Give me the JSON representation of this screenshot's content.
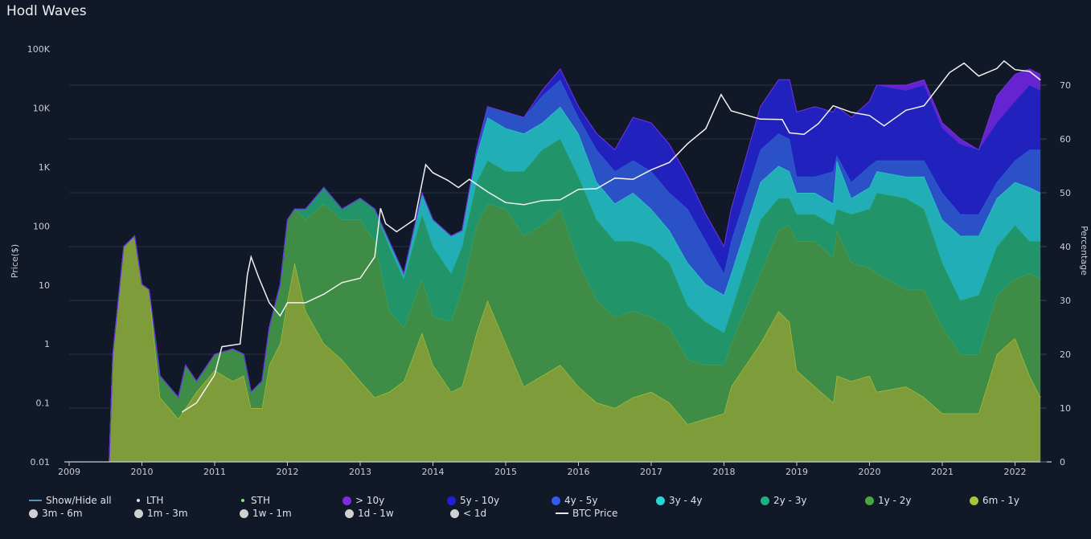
{
  "title": "Hodl Waves",
  "legend": {
    "row1": [
      {
        "label": "Show/Hide all",
        "marker": "dash",
        "color": "#5b8fb8"
      },
      {
        "label": "LTH",
        "marker": "small-dot",
        "color": "#e0e0e0"
      },
      {
        "label": "STH",
        "marker": "small-dot",
        "color": "#8ee07a"
      },
      {
        "label": "> 10y",
        "marker": "dot",
        "color": "#7a2ee0"
      },
      {
        "label": "5y - 10y",
        "marker": "dot",
        "color": "#2020d8"
      },
      {
        "label": "4y - 5y",
        "marker": "dot",
        "color": "#2f5ee8"
      },
      {
        "label": "3y - 4y",
        "marker": "dot",
        "color": "#2ad4d4"
      },
      {
        "label": "2y - 3y",
        "marker": "dot",
        "color": "#20b080"
      },
      {
        "label": "1y - 2y",
        "marker": "dot",
        "color": "#46a840"
      },
      {
        "label": "6m - 1y",
        "marker": "dot",
        "color": "#a9c43a"
      }
    ],
    "row2": [
      {
        "label": "3m - 6m",
        "marker": "dot",
        "color": "#d0d0d0"
      },
      {
        "label": "1m - 3m",
        "marker": "dot",
        "color": "#d0d0d0"
      },
      {
        "label": "1w - 1m",
        "marker": "dot",
        "color": "#d0d0d0"
      },
      {
        "label": "1d - 1w",
        "marker": "dot",
        "color": "#d0d0d0"
      },
      {
        "label": "< 1d",
        "marker": "dot",
        "color": "#d0d0d0"
      },
      {
        "label": "BTC Price",
        "marker": "dash",
        "color": "#e8e8e8"
      }
    ]
  },
  "chart_data": {
    "type": "area",
    "stacked": true,
    "ylabel_left": "Price($)",
    "ylabel_right": "Percentage",
    "left_axis": {
      "scale": "log",
      "range": [
        0.01,
        100000
      ],
      "ticks": [
        "0.01",
        "0.1",
        "1",
        "10",
        "100",
        "1K",
        "10K",
        "100K"
      ]
    },
    "right_axis": {
      "range": [
        0,
        76
      ],
      "ticks": [
        "0",
        "10",
        "20",
        "30",
        "40",
        "50",
        "60",
        "70"
      ]
    },
    "x_ticks": [
      "2009",
      "2010",
      "2011",
      "2012",
      "2013",
      "2014",
      "2015",
      "2016",
      "2017",
      "2018",
      "2019",
      "2020",
      "2021",
      "2022"
    ],
    "grid": true,
    "legend_position": "bottom",
    "x": [
      2009.55,
      2009.6,
      2009.75,
      2009.9,
      2010.0,
      2010.1,
      2010.25,
      2010.5,
      2010.6,
      2010.75,
      2011.0,
      2011.25,
      2011.4,
      2011.5,
      2011.65,
      2011.75,
      2011.9,
      2012.0,
      2012.1,
      2012.25,
      2012.5,
      2012.75,
      2013.0,
      2013.2,
      2013.4,
      2013.6,
      2013.85,
      2014.0,
      2014.25,
      2014.4,
      2014.6,
      2014.75,
      2015.0,
      2015.25,
      2015.5,
      2015.75,
      2016.0,
      2016.25,
      2016.5,
      2016.75,
      2017.0,
      2017.25,
      2017.5,
      2017.75,
      2018.0,
      2018.1,
      2018.5,
      2018.75,
      2018.9,
      2019.0,
      2019.25,
      2019.5,
      2019.55,
      2019.75,
      2020.0,
      2020.1,
      2020.5,
      2020.75,
      2021.0,
      2021.25,
      2021.5,
      2021.75,
      2022.0,
      2022.2,
      2022.35
    ],
    "series": [
      {
        "name": "6m - 1y",
        "color": "#7f9c3b",
        "line": "#b8d236",
        "values": [
          0,
          20,
          40,
          42,
          33,
          32,
          12,
          8,
          10,
          13,
          17,
          15,
          16,
          10,
          10,
          18,
          22,
          30,
          37,
          28,
          22,
          19,
          15,
          12,
          13,
          15,
          24,
          18,
          13,
          14,
          24,
          30,
          22,
          14,
          16,
          18,
          14,
          11,
          10,
          12,
          13,
          11,
          7,
          8,
          9,
          14,
          22,
          28,
          26,
          17,
          14,
          11,
          16,
          15,
          16,
          13,
          14,
          12,
          9,
          9,
          9,
          20,
          23,
          16,
          12
        ]
      },
      {
        "name": "1y - 2y",
        "color": "#3e8c45",
        "line": "#4ea54a",
        "values": [
          0,
          0,
          0,
          0,
          0,
          0,
          4,
          4,
          8,
          2,
          3,
          6,
          4,
          3,
          5,
          7,
          11,
          15,
          10,
          17,
          26,
          26,
          30,
          29,
          15,
          10,
          10,
          9,
          13,
          18,
          20,
          18,
          25,
          28,
          28,
          29,
          23,
          19,
          17,
          16,
          14,
          14,
          12,
          10,
          9,
          8,
          13,
          15,
          18,
          24,
          27,
          27,
          27,
          22,
          20,
          22,
          18,
          20,
          16,
          11,
          11,
          11,
          11,
          19,
          22
        ]
      },
      {
        "name": "2y - 3y",
        "color": "#22946a",
        "line": "#27a874",
        "values": [
          0,
          0,
          0,
          0,
          0,
          0,
          0,
          0,
          0,
          0,
          0,
          0,
          0,
          0,
          0,
          0,
          0,
          0,
          0,
          2,
          3,
          2,
          4,
          6,
          12,
          9,
          12,
          13,
          9,
          8,
          8,
          8,
          7,
          12,
          14,
          13,
          16,
          15,
          14,
          13,
          13,
          12,
          10,
          8,
          6,
          6,
          10,
          6,
          5,
          5,
          5,
          6,
          4,
          9,
          11,
          15,
          17,
          15,
          12,
          10,
          11,
          9,
          10,
          6,
          7
        ]
      },
      {
        "name": "3y - 4y",
        "color": "#22aeb6",
        "line": "#35d2d8",
        "values": [
          0,
          0,
          0,
          0,
          0,
          0,
          0,
          0,
          0,
          0,
          0,
          0,
          0,
          0,
          0,
          0,
          0,
          0,
          0,
          0,
          0,
          0,
          0,
          0,
          1,
          1,
          4,
          5,
          7,
          3,
          5,
          8,
          8,
          7,
          5,
          6,
          8,
          7,
          7,
          9,
          7,
          6,
          8,
          7,
          7,
          7,
          7,
          6,
          5,
          4,
          4,
          4,
          9,
          3,
          4,
          4,
          4,
          6,
          8,
          12,
          11,
          9,
          8,
          10,
          9
        ]
      },
      {
        "name": "4y - 5y",
        "color": "#2a52c6",
        "line": "#3060e0",
        "values": [
          0,
          0,
          0,
          0,
          0,
          0,
          0,
          0,
          0,
          0,
          0,
          0,
          0,
          0,
          0,
          0,
          0,
          0,
          0,
          0,
          0,
          0,
          0,
          0,
          0,
          0,
          0,
          0,
          0,
          0,
          1,
          2,
          3,
          3,
          5,
          5,
          3,
          6,
          6,
          6,
          7,
          7,
          10,
          8,
          4,
          6,
          6,
          6,
          6,
          3,
          3,
          6,
          1,
          3,
          4,
          2,
          3,
          3,
          5,
          4,
          4,
          3,
          4,
          7,
          8
        ]
      },
      {
        "name": "5y - 10y",
        "color": "#2121bd",
        "line": "#2a2ad0",
        "values": [
          0,
          0,
          0,
          0,
          0,
          0,
          0,
          0,
          0,
          0,
          0,
          0,
          0,
          0,
          0,
          0,
          0,
          0,
          0,
          0,
          0,
          0,
          0,
          0,
          0,
          0,
          0,
          0,
          0,
          0,
          0,
          0,
          0,
          0,
          1,
          2,
          2,
          3,
          4,
          8,
          9,
          9,
          6,
          5,
          5,
          6,
          8,
          10,
          11,
          12,
          13,
          11,
          9,
          12,
          12,
          14,
          13,
          14,
          12,
          13,
          12,
          11,
          11,
          12,
          11
        ]
      },
      {
        "name": "> 10y",
        "color": "#6524cf",
        "line": "#7430e0",
        "values": [
          0,
          0,
          0,
          0,
          0,
          0,
          0,
          0,
          0,
          0,
          0,
          0,
          0,
          0,
          0,
          0,
          0,
          0,
          0,
          0,
          0,
          0,
          0,
          0,
          0,
          0,
          0,
          0,
          0,
          0,
          0,
          0,
          0,
          0,
          0,
          0,
          0,
          0,
          0,
          0,
          0,
          0,
          0,
          0,
          0,
          0,
          0,
          0,
          0,
          0,
          0,
          0,
          0,
          0,
          0,
          0,
          1,
          1,
          1,
          1,
          0,
          5,
          5,
          3,
          3
        ]
      }
    ],
    "btc_price": {
      "name": "BTC Price",
      "color": "#f2f2f2",
      "x": [
        2010.55,
        2010.75,
        2011.0,
        2011.1,
        2011.35,
        2011.45,
        2011.5,
        2011.6,
        2011.75,
        2011.9,
        2012.0,
        2012.25,
        2012.5,
        2012.75,
        2013.0,
        2013.2,
        2013.28,
        2013.35,
        2013.5,
        2013.75,
        2013.9,
        2014.0,
        2014.2,
        2014.35,
        2014.5,
        2014.75,
        2015.0,
        2015.25,
        2015.5,
        2015.75,
        2016.0,
        2016.25,
        2016.5,
        2016.75,
        2017.0,
        2017.25,
        2017.5,
        2017.75,
        2017.96,
        2018.1,
        2018.5,
        2018.8,
        2018.9,
        2019.1,
        2019.3,
        2019.5,
        2019.75,
        2020.0,
        2020.2,
        2020.5,
        2020.75,
        2020.95,
        2021.1,
        2021.3,
        2021.5,
        2021.75,
        2021.85,
        2022.0,
        2022.2,
        2022.35
      ],
      "values": [
        0.07,
        0.1,
        0.3,
        0.9,
        1,
        15,
        30,
        14,
        5,
        3,
        5,
        5,
        7,
        11,
        13,
        30,
        200,
        110,
        80,
        130,
        1100,
        800,
        600,
        450,
        620,
        380,
        250,
        230,
        270,
        280,
        420,
        430,
        650,
        620,
        900,
        1200,
        2500,
        4500,
        17000,
        9000,
        6500,
        6400,
        3800,
        3600,
        5500,
        11000,
        8500,
        7500,
        5000,
        9200,
        11000,
        23000,
        40000,
        58000,
        35000,
        47000,
        63000,
        45000,
        42000,
        30000
      ]
    }
  }
}
